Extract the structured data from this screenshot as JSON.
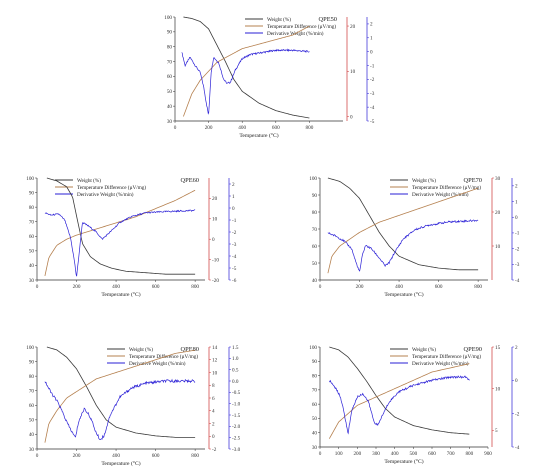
{
  "colors": {
    "weight": "#3a3a3a",
    "temperature_difference": "#b5804f",
    "derivative_weight": "#2a1fd6",
    "left_axis": "#333333",
    "right_axis_1": "#cc3333",
    "right_axis_2": "#2a1fd6"
  },
  "chart_data": [
    {
      "type": "line",
      "title": "QPE50",
      "xlabel": "Temperature (°C)",
      "xlim": [
        0,
        1000
      ],
      "x_ticks": [
        "0",
        "200",
        "400",
        "600",
        "800"
      ],
      "legend": [
        "Weight (%)",
        "Temperature Difference (µV/mg)",
        "Derivative Weight (%/min)"
      ],
      "legend_placement": "top-center",
      "grid": false,
      "y_left": {
        "ylim": [
          30,
          100
        ],
        "ticks": [
          "30",
          "40",
          "50",
          "60",
          "70",
          "80",
          "90",
          "100"
        ]
      },
      "y_right1": {
        "ylim": [
          -1,
          22
        ],
        "ticks": [
          "0",
          "10",
          "20"
        ]
      },
      "y_right2": {
        "ylim": [
          -5,
          2.5
        ],
        "ticks": [
          "-5",
          "-4",
          "-3",
          "-2",
          "-1",
          "0",
          "1",
          "2"
        ]
      },
      "series": [
        {
          "name": "Weight (%)",
          "axis": "left",
          "x": [
            50,
            100,
            150,
            200,
            250,
            300,
            350,
            400,
            500,
            600,
            700,
            800
          ],
          "y": [
            100,
            99,
            97,
            92,
            81,
            70,
            58,
            50,
            42,
            37,
            34,
            32
          ]
        },
        {
          "name": "Temperature Difference (µV/mg)",
          "axis": "right1",
          "x": [
            50,
            100,
            150,
            200,
            250,
            300,
            350,
            400,
            500,
            600,
            700,
            800
          ],
          "y": [
            0,
            5,
            8,
            10,
            12,
            13,
            14,
            15,
            16,
            17,
            18,
            20
          ]
        },
        {
          "name": "Derivative Weight (%/min)",
          "axis": "right2",
          "x": [
            40,
            60,
            90,
            120,
            150,
            170,
            185,
            200,
            215,
            230,
            260,
            290,
            310,
            330,
            360,
            400,
            450,
            500,
            600,
            700,
            800
          ],
          "y": [
            0,
            -1,
            -0.4,
            -1,
            -1.5,
            -2.5,
            -3.6,
            -4.6,
            -1.5,
            -0.4,
            -0.8,
            -2,
            -2.3,
            -2.2,
            -1.3,
            -0.5,
            -0.2,
            -0.1,
            0.1,
            0.1,
            0
          ]
        }
      ]
    },
    {
      "type": "line",
      "title": "QPE60",
      "xlabel": "Temperature (°C)",
      "xlim": [
        0,
        850
      ],
      "x_ticks": [
        "0",
        "200",
        "400",
        "600",
        "800"
      ],
      "legend": [
        "Weight (%)",
        "Temperature Difference (µV/mg)",
        "Derivative Weight (%/min)"
      ],
      "legend_placement": "top-left",
      "grid": false,
      "y_left": {
        "ylim": [
          30,
          100
        ],
        "ticks": [
          "30",
          "40",
          "50",
          "60",
          "70",
          "80",
          "90",
          "100"
        ]
      },
      "y_right1": {
        "ylim": [
          -20,
          30
        ],
        "ticks": [
          "-20",
          "-10",
          "0",
          "10",
          "20"
        ]
      },
      "y_right2": {
        "ylim": [
          -6,
          2.5
        ],
        "ticks": [
          "-6",
          "-5",
          "-4",
          "-3",
          "-2",
          "-1",
          "0",
          "1",
          "2"
        ]
      },
      "series": [
        {
          "name": "Weight (%)",
          "axis": "left",
          "x": [
            50,
            100,
            150,
            180,
            200,
            230,
            270,
            320,
            380,
            450,
            550,
            650,
            750,
            800
          ],
          "y": [
            100,
            98,
            94,
            87,
            74,
            55,
            46,
            41,
            38,
            36,
            35,
            34,
            34,
            34
          ]
        },
        {
          "name": "Temperature Difference (µV/mg)",
          "axis": "right1",
          "x": [
            40,
            60,
            100,
            150,
            200,
            300,
            400,
            500,
            600,
            700,
            800
          ],
          "y": [
            -18,
            -9,
            -3,
            0,
            2,
            5,
            8,
            11,
            15,
            19,
            24
          ]
        },
        {
          "name": "Derivative Weight (%/min)",
          "axis": "right2",
          "x": [
            40,
            70,
            110,
            140,
            170,
            190,
            200,
            215,
            230,
            260,
            300,
            330,
            370,
            420,
            480,
            550,
            650,
            800
          ],
          "y": [
            -0.4,
            -0.6,
            -0.5,
            -1,
            -2.5,
            -4.5,
            -5.8,
            -3.5,
            -1.2,
            -1.5,
            -2,
            -2.6,
            -2,
            -1.2,
            -0.7,
            -0.4,
            -0.3,
            -0.2
          ]
        }
      ]
    },
    {
      "type": "line",
      "title": "QPE70",
      "xlabel": "Temperature (°C)",
      "xlim": [
        0,
        850
      ],
      "x_ticks": [
        "0",
        "200",
        "400",
        "600",
        "800"
      ],
      "legend": [
        "Weight (%)",
        "Temperature Difference (µV/mg)",
        "Derivative Weight (%/min)"
      ],
      "legend_placement": "top-center",
      "grid": false,
      "y_left": {
        "ylim": [
          40,
          100
        ],
        "ticks": [
          "40",
          "50",
          "60",
          "70",
          "80",
          "90",
          "100"
        ]
      },
      "y_right1": {
        "ylim": [
          0,
          30
        ],
        "ticks": [
          "10",
          "20",
          "30"
        ]
      },
      "y_right2": {
        "ylim": [
          -4,
          2.5
        ],
        "ticks": [
          "-4",
          "-3",
          "-2",
          "-1",
          "0",
          "1",
          "2"
        ]
      },
      "series": [
        {
          "name": "Weight (%)",
          "axis": "left",
          "x": [
            40,
            100,
            150,
            200,
            250,
            300,
            350,
            400,
            500,
            600,
            700,
            800
          ],
          "y": [
            100,
            98,
            94,
            88,
            78,
            68,
            60,
            54,
            49,
            47,
            46,
            46
          ]
        },
        {
          "name": "Temperature Difference (µV/mg)",
          "axis": "right1",
          "x": [
            40,
            60,
            100,
            150,
            200,
            300,
            400,
            500,
            600,
            700,
            800
          ],
          "y": [
            2,
            7,
            10,
            12,
            14,
            17,
            19,
            21,
            23,
            25,
            27
          ]
        },
        {
          "name": "Derivative Weight (%/min)",
          "axis": "right2",
          "x": [
            40,
            80,
            120,
            160,
            180,
            200,
            215,
            230,
            260,
            300,
            330,
            350,
            380,
            420,
            480,
            550,
            650,
            800
          ],
          "y": [
            -1,
            -1.2,
            -1.5,
            -2,
            -2.8,
            -3.5,
            -2.4,
            -1.8,
            -2,
            -2.6,
            -3.1,
            -2.9,
            -2.2,
            -1.4,
            -0.8,
            -0.5,
            -0.3,
            -0.2
          ]
        }
      ]
    },
    {
      "type": "line",
      "title": "QPE80",
      "xlabel": "Temperature (°C)",
      "xlim": [
        0,
        850
      ],
      "x_ticks": [
        "0",
        "200",
        "400",
        "600",
        "800"
      ],
      "legend": [
        "Weight (%)",
        "Temperature Difference (µV/mg)",
        "Derivative Weight (%/min)"
      ],
      "legend_placement": "top-center",
      "grid": false,
      "y_left": {
        "ylim": [
          30,
          100
        ],
        "ticks": [
          "30",
          "40",
          "50",
          "60",
          "70",
          "80",
          "90",
          "100"
        ]
      },
      "y_right1": {
        "ylim": [
          -2,
          14
        ],
        "ticks": [
          "-2",
          "0",
          "2",
          "4",
          "6",
          "8",
          "10",
          "12",
          "14"
        ]
      },
      "y_right2": {
        "ylim": [
          -3,
          1.5
        ],
        "ticks": [
          "-3.0",
          "-2.5",
          "-2.0",
          "-1.5",
          "-1.0",
          "-0.5",
          "0.0",
          "0.5",
          "1.0",
          "1.5"
        ]
      },
      "series": [
        {
          "name": "Weight (%)",
          "axis": "left",
          "x": [
            50,
            100,
            150,
            200,
            250,
            300,
            350,
            400,
            500,
            600,
            700,
            800
          ],
          "y": [
            100,
            98,
            93,
            85,
            73,
            60,
            50,
            45,
            41,
            39,
            38,
            38
          ]
        },
        {
          "name": "Temperature Difference (µV/mg)",
          "axis": "right1",
          "x": [
            40,
            60,
            100,
            150,
            200,
            300,
            400,
            500,
            600,
            700,
            800
          ],
          "y": [
            -1,
            2,
            4,
            6,
            7,
            9,
            10,
            11,
            12,
            13,
            13.5
          ]
        },
        {
          "name": "Derivative Weight (%/min)",
          "axis": "right2",
          "x": [
            40,
            70,
            110,
            150,
            180,
            195,
            210,
            240,
            270,
            300,
            320,
            340,
            370,
            420,
            480,
            550,
            650,
            800
          ],
          "y": [
            0,
            -0.5,
            -1,
            -1.8,
            -2.3,
            -2.5,
            -1.8,
            -1.2,
            -1.6,
            -2.3,
            -2.6,
            -2.4,
            -1.5,
            -0.7,
            -0.3,
            -0.1,
            0,
            0
          ]
        }
      ]
    },
    {
      "type": "line",
      "title": "QPE90",
      "xlabel": "Temperature (°C)",
      "xlim": [
        0,
        900
      ],
      "x_ticks": [
        "0",
        "100",
        "200",
        "300",
        "400",
        "500",
        "600",
        "700",
        "800",
        "900"
      ],
      "legend": [
        "Weight (%)",
        "Temperature Difference (µV/mg)",
        "Derivative Weight (%/min)"
      ],
      "legend_placement": "top-center",
      "grid": false,
      "y_left": {
        "ylim": [
          30,
          100
        ],
        "ticks": [
          "30",
          "40",
          "50",
          "60",
          "70",
          "80",
          "90",
          "100"
        ]
      },
      "y_right1": {
        "ylim": [
          3,
          15
        ],
        "ticks": [
          "5",
          "10",
          "15"
        ]
      },
      "y_right2": {
        "ylim": [
          -4,
          2
        ],
        "ticks": [
          "-4",
          "-2",
          "0",
          "2"
        ]
      },
      "series": [
        {
          "name": "Weight (%)",
          "axis": "left",
          "x": [
            50,
            100,
            150,
            200,
            250,
            300,
            350,
            400,
            500,
            600,
            700,
            800
          ],
          "y": [
            100,
            98,
            93,
            85,
            76,
            66,
            57,
            51,
            45,
            42,
            40,
            39
          ]
        },
        {
          "name": "Temperature Difference (µV/mg)",
          "axis": "right1",
          "x": [
            50,
            100,
            150,
            200,
            300,
            400,
            500,
            600,
            700,
            800
          ],
          "y": [
            4,
            6,
            7,
            8,
            9,
            10,
            11,
            12,
            12.5,
            13
          ]
        },
        {
          "name": "Derivative Weight (%/min)",
          "axis": "right2",
          "x": [
            50,
            80,
            110,
            130,
            150,
            170,
            200,
            230,
            260,
            290,
            310,
            330,
            370,
            420,
            500,
            600,
            700,
            780,
            800
          ],
          "y": [
            0,
            -0.4,
            -1,
            -2,
            -3.2,
            -1.8,
            -1,
            -0.8,
            -1.3,
            -2.5,
            -2.7,
            -2.2,
            -1.3,
            -0.7,
            -0.3,
            0,
            0.2,
            0.2,
            0
          ]
        }
      ]
    }
  ]
}
